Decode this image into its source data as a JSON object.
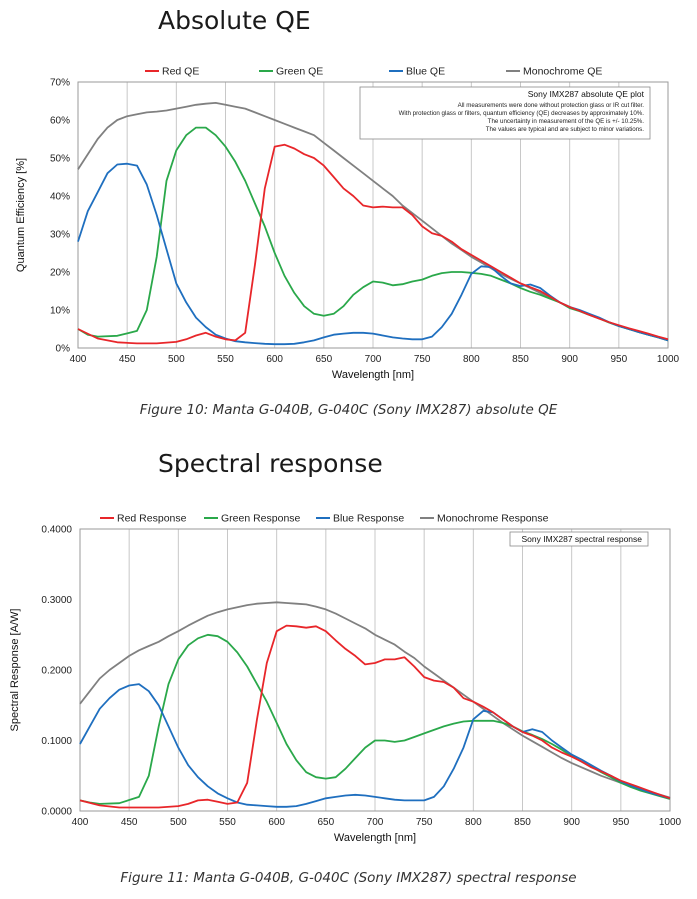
{
  "colors": {
    "red": "#e8262a",
    "green": "#2aa84a",
    "blue": "#1f6fbf",
    "mono": "#808080",
    "grid": "#c8c8c8",
    "frame": "#9a9a9a"
  },
  "chart_data": [
    {
      "type": "line",
      "heading": "Absolute QE",
      "caption": "Figure 10: Manta G-040B, G-040C (Sony IMX287) absolute QE",
      "xlabel": "Wavelength [nm]",
      "ylabel": "Quantum Efficiency [%]",
      "xlim": [
        400,
        1000
      ],
      "ylim": [
        0,
        70
      ],
      "x_ticks": [
        "400",
        "450",
        "500",
        "550",
        "600",
        "650",
        "700",
        "750",
        "800",
        "850",
        "900",
        "950",
        "1000"
      ],
      "y_ticks": [
        "0%",
        "10%",
        "20%",
        "30%",
        "40%",
        "50%",
        "60%",
        "70%"
      ],
      "grid": true,
      "legend": "top",
      "note_title": "Sony IMX287 absolute QE plot",
      "note_lines": [
        "All measurements were done without protection glass or IR cut filter.",
        "With protection glass or filters, quantum efficiency (QE) decreases by approximately 10%.",
        "The uncertainty in measurement of the QE is +/- 10.25%.",
        "The values are typical and are subject to minor variations."
      ],
      "series": [
        {
          "name": "Red QE",
          "color_key": "red",
          "x": [
            400,
            420,
            440,
            460,
            480,
            500,
            510,
            520,
            530,
            540,
            550,
            560,
            570,
            580,
            590,
            600,
            610,
            620,
            630,
            640,
            650,
            660,
            670,
            680,
            690,
            700,
            710,
            720,
            730,
            740,
            750,
            760,
            770,
            780,
            790,
            800,
            810,
            820,
            830,
            840,
            850,
            860,
            870,
            880,
            890,
            900,
            910,
            920,
            930,
            940,
            950,
            960,
            970,
            980,
            990,
            1000
          ],
          "y": [
            5,
            2.5,
            1.5,
            1.2,
            1.2,
            1.6,
            2.3,
            3.3,
            4,
            3,
            2.3,
            2,
            4,
            22,
            42,
            53,
            53.5,
            52.5,
            51,
            50,
            48,
            45,
            42,
            40,
            37.5,
            37,
            37.2,
            37,
            37,
            35,
            32,
            30.2,
            29.5,
            28,
            26,
            24.5,
            23,
            21.5,
            20,
            18.5,
            17,
            16,
            15,
            13.5,
            12,
            10.8,
            9.8,
            8.7,
            7.7,
            6.8,
            6,
            5.2,
            4.5,
            3.8,
            3,
            2.3
          ]
        },
        {
          "name": "Green QE",
          "color_key": "green",
          "x": [
            400,
            410,
            420,
            440,
            460,
            470,
            480,
            490,
            500,
            510,
            520,
            530,
            540,
            550,
            560,
            570,
            580,
            590,
            600,
            610,
            620,
            630,
            640,
            650,
            660,
            670,
            680,
            690,
            700,
            710,
            720,
            730,
            740,
            750,
            760,
            770,
            780,
            790,
            800,
            810,
            820,
            830,
            840,
            850,
            860,
            870,
            880,
            890,
            900,
            910,
            920,
            930,
            940,
            950,
            960,
            970,
            980,
            990,
            1000
          ],
          "y": [
            5,
            3.5,
            3,
            3.2,
            4.5,
            10,
            24,
            44,
            52,
            56,
            58,
            58,
            56,
            53,
            49,
            44,
            38,
            32,
            25,
            19,
            14.5,
            11,
            9,
            8.5,
            9,
            11,
            14,
            16,
            17.5,
            17.2,
            16.5,
            16.8,
            17.5,
            18,
            19,
            19.7,
            20,
            20,
            19.8,
            19.5,
            19,
            18,
            17,
            15.8,
            14.8,
            14,
            13,
            12,
            10.5,
            9.7,
            8.7,
            7.8,
            6.7,
            5.8,
            5,
            4.2,
            3.5,
            2.8,
            2
          ]
        },
        {
          "name": "Blue QE",
          "color_key": "blue",
          "x": [
            400,
            410,
            420,
            430,
            440,
            450,
            460,
            470,
            480,
            490,
            500,
            510,
            520,
            530,
            540,
            550,
            560,
            570,
            580,
            590,
            600,
            610,
            620,
            630,
            640,
            650,
            660,
            670,
            680,
            690,
            700,
            710,
            720,
            730,
            740,
            750,
            760,
            770,
            780,
            790,
            800,
            810,
            820,
            830,
            840,
            850,
            860,
            870,
            880,
            890,
            900,
            910,
            920,
            930,
            940,
            950,
            960,
            970,
            980,
            990,
            1000
          ],
          "y": [
            28,
            36,
            41,
            46,
            48.3,
            48.5,
            48,
            43,
            35,
            26,
            17,
            12,
            8,
            5.5,
            3.5,
            2.5,
            1.8,
            1.5,
            1.3,
            1.1,
            1,
            1,
            1.1,
            1.5,
            2,
            2.8,
            3.5,
            3.8,
            4,
            4,
            3.8,
            3.3,
            2.8,
            2.5,
            2.3,
            2.3,
            3,
            5.5,
            9,
            14,
            19.5,
            21.5,
            21.3,
            19,
            17,
            16.3,
            16.7,
            15.8,
            13.8,
            12,
            10.8,
            10,
            9,
            8,
            6.8,
            5.8,
            5,
            4.2,
            3.5,
            2.8,
            2
          ]
        },
        {
          "name": "Monochrome QE",
          "color_key": "mono",
          "x": [
            400,
            410,
            420,
            430,
            440,
            450,
            460,
            470,
            480,
            490,
            500,
            510,
            520,
            530,
            540,
            550,
            560,
            570,
            580,
            590,
            600,
            610,
            620,
            630,
            640,
            650,
            660,
            670,
            680,
            690,
            700,
            710,
            720,
            730,
            740,
            750,
            760,
            770,
            780,
            790,
            800,
            810,
            820,
            830,
            840,
            850,
            860,
            870,
            880,
            890,
            900,
            910,
            920,
            930,
            940,
            950,
            960,
            970,
            980,
            990,
            1000
          ],
          "y": [
            47,
            51,
            55,
            58,
            60,
            61,
            61.5,
            62,
            62.2,
            62.5,
            63,
            63.5,
            64,
            64.3,
            64.5,
            64,
            63.5,
            63,
            62,
            61,
            60,
            59,
            58,
            57,
            56,
            54,
            52,
            50,
            48,
            46,
            44,
            42,
            40,
            37.5,
            35.5,
            33.5,
            31.5,
            29.5,
            27.5,
            25.8,
            24,
            22.5,
            21,
            19.5,
            18.2,
            17,
            15.8,
            14.5,
            13.2,
            12,
            10.8,
            9.8,
            8.8,
            7.8,
            6.8,
            5.8,
            5,
            4.2,
            3.5,
            2.8,
            2
          ]
        }
      ]
    },
    {
      "type": "line",
      "heading": "Spectral response",
      "caption": "Figure 11: Manta G-040B, G-040C (Sony IMX287) spectral response",
      "xlabel": "Wavelength [nm]",
      "ylabel": "Spectral Response [A/W]",
      "xlim": [
        400,
        1000
      ],
      "ylim": [
        0,
        0.4
      ],
      "x_ticks": [
        "400",
        "450",
        "500",
        "550",
        "600",
        "650",
        "700",
        "750",
        "800",
        "850",
        "900",
        "950",
        "1000"
      ],
      "y_ticks": [
        "0.0000",
        "0.1000",
        "0.2000",
        "0.3000",
        "0.4000"
      ],
      "grid": true,
      "legend": "top",
      "note_title": "Sony IMX287 spectral response",
      "note_lines": [],
      "series": [
        {
          "name": "Red Response",
          "color_key": "red",
          "x": [
            400,
            420,
            440,
            460,
            480,
            500,
            510,
            520,
            530,
            540,
            550,
            560,
            570,
            580,
            590,
            600,
            610,
            620,
            630,
            640,
            650,
            660,
            670,
            680,
            690,
            700,
            710,
            720,
            730,
            740,
            750,
            760,
            770,
            780,
            790,
            800,
            810,
            820,
            830,
            840,
            850,
            860,
            870,
            880,
            890,
            900,
            910,
            920,
            930,
            940,
            950,
            960,
            970,
            980,
            990,
            1000
          ],
          "y": [
            0.015,
            0.008,
            0.005,
            0.005,
            0.005,
            0.007,
            0.01,
            0.015,
            0.016,
            0.013,
            0.01,
            0.012,
            0.04,
            0.13,
            0.21,
            0.255,
            0.263,
            0.262,
            0.26,
            0.262,
            0.255,
            0.242,
            0.23,
            0.22,
            0.208,
            0.21,
            0.215,
            0.215,
            0.218,
            0.205,
            0.19,
            0.185,
            0.183,
            0.175,
            0.16,
            0.155,
            0.148,
            0.14,
            0.13,
            0.12,
            0.112,
            0.107,
            0.1,
            0.09,
            0.083,
            0.077,
            0.07,
            0.062,
            0.056,
            0.05,
            0.043,
            0.038,
            0.033,
            0.028,
            0.023,
            0.018
          ]
        },
        {
          "name": "Green Response",
          "color_key": "green",
          "x": [
            400,
            410,
            420,
            440,
            460,
            470,
            480,
            490,
            500,
            510,
            520,
            530,
            540,
            550,
            560,
            570,
            580,
            590,
            600,
            610,
            620,
            630,
            640,
            650,
            660,
            670,
            680,
            690,
            700,
            710,
            720,
            730,
            740,
            750,
            760,
            770,
            780,
            790,
            800,
            810,
            820,
            830,
            840,
            850,
            860,
            870,
            880,
            890,
            900,
            910,
            920,
            930,
            940,
            950,
            960,
            970,
            980,
            990,
            1000
          ],
          "y": [
            0.015,
            0.012,
            0.01,
            0.011,
            0.02,
            0.05,
            0.12,
            0.18,
            0.215,
            0.235,
            0.245,
            0.25,
            0.248,
            0.24,
            0.225,
            0.205,
            0.18,
            0.155,
            0.125,
            0.095,
            0.072,
            0.055,
            0.048,
            0.046,
            0.048,
            0.06,
            0.075,
            0.09,
            0.1,
            0.1,
            0.098,
            0.1,
            0.105,
            0.11,
            0.115,
            0.12,
            0.124,
            0.127,
            0.128,
            0.128,
            0.128,
            0.125,
            0.12,
            0.113,
            0.108,
            0.102,
            0.095,
            0.087,
            0.078,
            0.07,
            0.063,
            0.055,
            0.048,
            0.04,
            0.034,
            0.029,
            0.025,
            0.021,
            0.017
          ]
        },
        {
          "name": "Blue Response",
          "color_key": "blue",
          "x": [
            400,
            410,
            420,
            430,
            440,
            450,
            460,
            470,
            480,
            490,
            500,
            510,
            520,
            530,
            540,
            550,
            560,
            570,
            580,
            590,
            600,
            610,
            620,
            630,
            640,
            650,
            660,
            670,
            680,
            690,
            700,
            710,
            720,
            730,
            740,
            750,
            760,
            770,
            780,
            790,
            800,
            810,
            820,
            830,
            840,
            850,
            860,
            870,
            880,
            890,
            900,
            910,
            920,
            930,
            940,
            950,
            960,
            970,
            980,
            990,
            1000
          ],
          "y": [
            0.095,
            0.12,
            0.145,
            0.16,
            0.172,
            0.178,
            0.18,
            0.17,
            0.15,
            0.12,
            0.09,
            0.065,
            0.048,
            0.035,
            0.025,
            0.018,
            0.012,
            0.009,
            0.008,
            0.007,
            0.006,
            0.006,
            0.007,
            0.01,
            0.014,
            0.018,
            0.02,
            0.022,
            0.023,
            0.022,
            0.02,
            0.018,
            0.016,
            0.015,
            0.015,
            0.015,
            0.02,
            0.035,
            0.06,
            0.09,
            0.13,
            0.142,
            0.14,
            0.13,
            0.12,
            0.112,
            0.116,
            0.112,
            0.1,
            0.09,
            0.08,
            0.073,
            0.065,
            0.057,
            0.05,
            0.042,
            0.036,
            0.031,
            0.026,
            0.022,
            0.018
          ]
        },
        {
          "name": "Monochrome Response",
          "color_key": "mono",
          "x": [
            400,
            410,
            420,
            430,
            440,
            450,
            460,
            470,
            480,
            490,
            500,
            510,
            520,
            530,
            540,
            550,
            560,
            570,
            580,
            590,
            600,
            610,
            620,
            630,
            640,
            650,
            660,
            670,
            680,
            690,
            700,
            710,
            720,
            730,
            740,
            750,
            760,
            770,
            780,
            790,
            800,
            810,
            820,
            830,
            840,
            850,
            860,
            870,
            880,
            890,
            900,
            910,
            920,
            930,
            940,
            950,
            960,
            970,
            980,
            990,
            1000
          ],
          "y": [
            0.152,
            0.17,
            0.188,
            0.2,
            0.21,
            0.22,
            0.228,
            0.234,
            0.24,
            0.248,
            0.255,
            0.263,
            0.27,
            0.277,
            0.282,
            0.286,
            0.289,
            0.292,
            0.294,
            0.295,
            0.296,
            0.295,
            0.294,
            0.293,
            0.29,
            0.286,
            0.28,
            0.273,
            0.266,
            0.259,
            0.25,
            0.243,
            0.236,
            0.226,
            0.217,
            0.205,
            0.195,
            0.185,
            0.175,
            0.165,
            0.155,
            0.145,
            0.135,
            0.125,
            0.116,
            0.107,
            0.099,
            0.091,
            0.083,
            0.075,
            0.068,
            0.062,
            0.056,
            0.05,
            0.045,
            0.04,
            0.035,
            0.031,
            0.027,
            0.023,
            0.019
          ]
        }
      ]
    }
  ]
}
